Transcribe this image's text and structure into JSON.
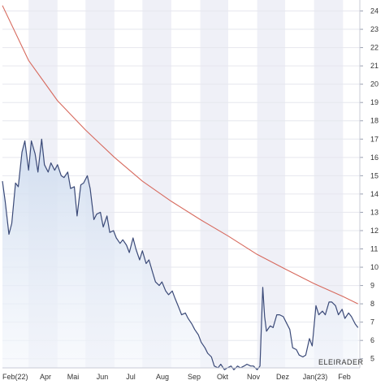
{
  "chart_data": {
    "type": "line",
    "title": "",
    "xlabel": "",
    "ylabel": "",
    "ylim": [
      4.5,
      24.6
    ],
    "y_ticks": [
      5,
      6,
      7,
      8,
      9,
      10,
      11,
      12,
      13,
      14,
      15,
      16,
      17,
      18,
      19,
      20,
      21,
      22,
      23,
      24
    ],
    "x_ticks": [
      "Feb(22)",
      "Apr",
      "Mai",
      "Jun",
      "Jul",
      "Aug",
      "Sep",
      "Okt",
      "Nov",
      "Dez",
      "Jan(23)",
      "Feb"
    ],
    "alternating_month_shading": true,
    "series": [
      {
        "color": "#3b4a78",
        "fill": "#dce6f4",
        "x": [
          "2022-02-01",
          "2022-02-04",
          "2022-02-08",
          "2022-02-11",
          "2022-02-15",
          "2022-02-18",
          "2022-02-22",
          "2022-02-25",
          "2022-03-01",
          "2022-03-04",
          "2022-03-08",
          "2022-03-11",
          "2022-03-15",
          "2022-03-18",
          "2022-03-22",
          "2022-03-25",
          "2022-03-29",
          "2022-04-01",
          "2022-04-05",
          "2022-04-08",
          "2022-04-12",
          "2022-04-15",
          "2022-04-19",
          "2022-04-22",
          "2022-04-26",
          "2022-04-29",
          "2022-05-03",
          "2022-05-06",
          "2022-05-10",
          "2022-05-13",
          "2022-05-17",
          "2022-05-20",
          "2022-05-24",
          "2022-05-27",
          "2022-05-31",
          "2022-06-03",
          "2022-06-07",
          "2022-06-10",
          "2022-06-14",
          "2022-06-17",
          "2022-06-21",
          "2022-06-24",
          "2022-06-28",
          "2022-07-01",
          "2022-07-05",
          "2022-07-08",
          "2022-07-12",
          "2022-07-15",
          "2022-07-19",
          "2022-07-22",
          "2022-07-26",
          "2022-07-29",
          "2022-08-02",
          "2022-08-05",
          "2022-08-09",
          "2022-08-12",
          "2022-08-16",
          "2022-08-19",
          "2022-08-23",
          "2022-08-26",
          "2022-08-30",
          "2022-09-02",
          "2022-09-06",
          "2022-09-09",
          "2022-09-13",
          "2022-09-16",
          "2022-09-20",
          "2022-09-23",
          "2022-09-27",
          "2022-09-30",
          "2022-10-04",
          "2022-10-07",
          "2022-10-11",
          "2022-10-14",
          "2022-10-18",
          "2022-10-21",
          "2022-10-25",
          "2022-10-28",
          "2022-11-01",
          "2022-11-04",
          "2022-11-07",
          "2022-11-09",
          "2022-11-11",
          "2022-11-15",
          "2022-11-18",
          "2022-11-22",
          "2022-11-25",
          "2022-11-29",
          "2022-12-02",
          "2022-12-06",
          "2022-12-09",
          "2022-12-13",
          "2022-12-16",
          "2022-12-20",
          "2022-12-23",
          "2022-12-27",
          "2022-12-30",
          "2023-01-03",
          "2023-01-06",
          "2023-01-10",
          "2023-01-13",
          "2023-01-17",
          "2023-01-20",
          "2023-01-24",
          "2023-01-27",
          "2023-01-31",
          "2023-02-03",
          "2023-02-07",
          "2023-02-10",
          "2023-02-14",
          "2023-02-17"
        ],
        "y": [
          14.7,
          13.6,
          11.8,
          12.4,
          14.6,
          14.4,
          16.3,
          16.9,
          15.3,
          16.9,
          16.2,
          15.2,
          17.0,
          15.6,
          15.2,
          15.7,
          15.3,
          15.6,
          15.0,
          14.9,
          15.2,
          14.3,
          14.4,
          12.8,
          14.5,
          14.6,
          15.0,
          14.3,
          12.6,
          12.9,
          13.0,
          12.2,
          12.8,
          11.9,
          12.0,
          11.6,
          11.3,
          11.5,
          11.2,
          10.8,
          11.6,
          11.0,
          10.4,
          10.9,
          10.2,
          10.4,
          9.7,
          9.2,
          9.0,
          9.2,
          8.7,
          8.5,
          8.7,
          8.3,
          7.8,
          7.4,
          7.5,
          7.2,
          6.9,
          6.6,
          6.3,
          5.9,
          5.6,
          5.3,
          5.1,
          4.6,
          4.5,
          4.7,
          4.4,
          4.5,
          4.6,
          4.4,
          4.6,
          4.5,
          4.6,
          4.7,
          4.6,
          4.6,
          4.4,
          4.6,
          8.9,
          7.3,
          6.5,
          6.8,
          6.7,
          7.4,
          7.4,
          7.3,
          7.0,
          6.6,
          5.6,
          5.5,
          5.2,
          5.1,
          5.2,
          6.1,
          5.7,
          7.9,
          7.4,
          7.6,
          7.4,
          8.1,
          8.1,
          7.9,
          7.4,
          7.7,
          7.2,
          7.5,
          7.3,
          6.9,
          6.7
        ]
      },
      {
        "color": "#d76a5e",
        "x": [
          "2022-02-01",
          "2022-03-01",
          "2022-04-01",
          "2022-05-01",
          "2022-06-01",
          "2022-07-01",
          "2022-08-01",
          "2022-09-01",
          "2022-10-01",
          "2022-11-01",
          "2022-12-01",
          "2023-01-01",
          "2023-02-01",
          "2023-02-17"
        ],
        "y": [
          24.3,
          21.3,
          19.1,
          17.5,
          16.0,
          14.7,
          13.6,
          12.6,
          11.7,
          10.7,
          9.9,
          9.1,
          8.4,
          8.0
        ]
      }
    ]
  },
  "watermark": "ELEIRADER"
}
